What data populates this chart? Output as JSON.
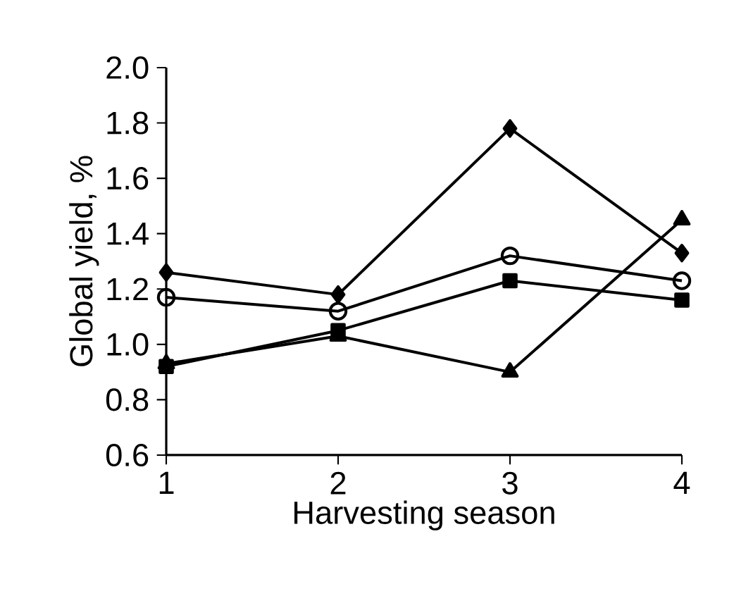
{
  "chart_data": {
    "type": "line",
    "xlabel": "Harvesting season",
    "ylabel": "Global yield, %",
    "x": [
      1,
      2,
      3,
      4
    ],
    "xlim": [
      1,
      4
    ],
    "xticks": [
      1,
      2,
      3,
      4
    ],
    "ylim": [
      0.6,
      2.0
    ],
    "yticks": [
      {
        "value": 0.6,
        "label": "0.6"
      },
      {
        "value": 0.8,
        "label": "0.8"
      },
      {
        "value": 1.0,
        "label": "1.0"
      },
      {
        "value": 1.2,
        "label": "1.2"
      },
      {
        "value": 1.4,
        "label": "1.4"
      },
      {
        "value": 1.6,
        "label": "1.6"
      },
      {
        "value": 1.8,
        "label": "1.8"
      },
      {
        "value": 2.0,
        "label": "2.0"
      }
    ],
    "grid": false,
    "series": [
      {
        "color": "#000000",
        "marker": "diamond",
        "values": [
          1.26,
          1.18,
          1.78,
          1.33
        ]
      },
      {
        "color": "#000000",
        "marker": "circle",
        "values": [
          1.17,
          1.12,
          1.32,
          1.23
        ]
      },
      {
        "color": "#000000",
        "marker": "square",
        "values": [
          0.92,
          1.05,
          1.23,
          1.16
        ]
      },
      {
        "color": "#000000",
        "marker": "triangle",
        "values": [
          0.93,
          1.03,
          0.9,
          1.45
        ]
      }
    ]
  }
}
